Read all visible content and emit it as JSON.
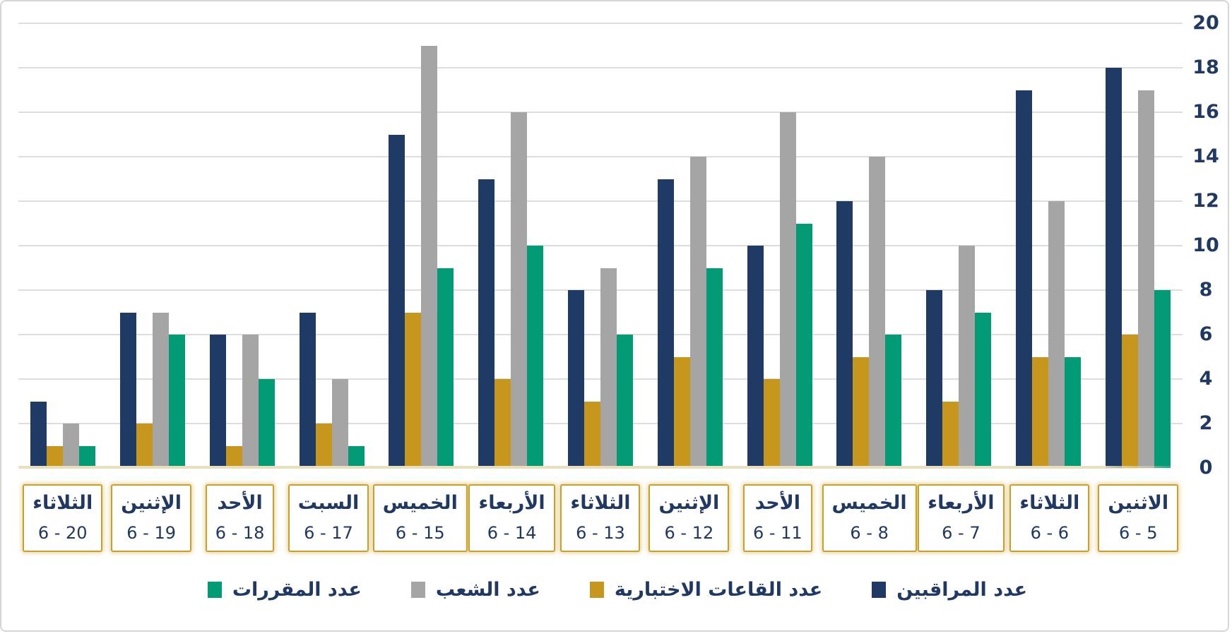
{
  "chart_data": {
    "type": "bar",
    "direction": "rtl",
    "title": "",
    "grid": true,
    "value_axis": {
      "position": "right",
      "min": 0,
      "max": 20,
      "step": 2,
      "ticks": [
        0,
        2,
        4,
        6,
        8,
        10,
        12,
        14,
        16,
        18,
        20
      ]
    },
    "categories_visual_left_to_right": [
      {
        "day": "الثلاثاء",
        "date_display": "6 - 20"
      },
      {
        "day": "الإثنين",
        "date_display": "6 - 19"
      },
      {
        "day": "الأحد",
        "date_display": "6 - 18"
      },
      {
        "day": "السبت",
        "date_display": "6 - 17"
      },
      {
        "day": "الخميس",
        "date_display": "6 - 15"
      },
      {
        "day": "الأربعاء",
        "date_display": "6 - 14"
      },
      {
        "day": "الثلاثاء",
        "date_display": "6 - 13"
      },
      {
        "day": "الإثنين",
        "date_display": "6 - 12"
      },
      {
        "day": "الأحد",
        "date_display": "6 - 11"
      },
      {
        "day": "الخميس",
        "date_display": "6 - 8"
      },
      {
        "day": "الأربعاء",
        "date_display": "6 - 7"
      },
      {
        "day": "الثلاثاء",
        "date_display": "6 - 6"
      },
      {
        "day": "الاثنين",
        "date_display": "6 - 5"
      }
    ],
    "series_bar_order_left_to_right": [
      {
        "name": "عدد المراقبين",
        "color": "#1f3a64",
        "values": [
          3,
          7,
          6,
          7,
          15,
          13,
          8,
          13,
          10,
          12,
          8,
          17,
          18
        ]
      },
      {
        "name": "عدد القاعات الاختبارية",
        "color": "#c6971c",
        "values": [
          1,
          2,
          1,
          2,
          7,
          4,
          3,
          5,
          4,
          5,
          3,
          5,
          6
        ]
      },
      {
        "name": "عدد الشعب",
        "color": "#a5a5a5",
        "values": [
          2,
          7,
          6,
          4,
          19,
          16,
          9,
          14,
          16,
          14,
          10,
          12,
          17
        ]
      },
      {
        "name": "عدد المقررات",
        "color": "#029b76",
        "values": [
          1,
          6,
          4,
          1,
          9,
          10,
          6,
          9,
          11,
          6,
          7,
          5,
          8
        ]
      }
    ],
    "legend": {
      "position": "bottom",
      "items_left_to_right": [
        {
          "label": "عدد المقررات",
          "color": "#029b76"
        },
        {
          "label": "عدد الشعب",
          "color": "#a5a5a5"
        },
        {
          "label": "عدد القاعات الاختبارية",
          "color": "#c6971c"
        },
        {
          "label": "عدد المراقبين",
          "color": "#1f3a64"
        }
      ]
    },
    "plot_colors": {
      "gridline": "#dddddd",
      "axis_baseline": "#eadfbc",
      "text": "#1f3864",
      "category_box_border": "#c9a02c"
    }
  }
}
